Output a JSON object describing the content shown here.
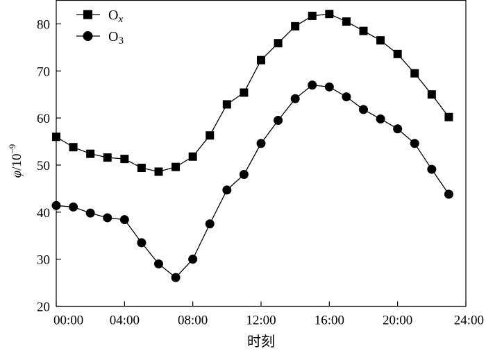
{
  "chart_data": {
    "type": "line",
    "xlabel": "时刻",
    "ylabel": {
      "symbol": "φ",
      "unit_base": "/10",
      "unit_exp": "−9"
    },
    "x": [
      0,
      1,
      2,
      3,
      4,
      5,
      6,
      7,
      8,
      9,
      10,
      11,
      12,
      13,
      14,
      15,
      16,
      17,
      18,
      19,
      20,
      21,
      22,
      23
    ],
    "xlim": [
      0,
      24
    ],
    "ylim": [
      20,
      85
    ],
    "xticks": [
      0,
      4,
      8,
      12,
      16,
      20,
      24
    ],
    "xtick_labels": [
      "00:00",
      "04:00",
      "08:00",
      "12:00",
      "16:00",
      "20:00",
      "24:00"
    ],
    "yticks": [
      20,
      30,
      40,
      50,
      60,
      70,
      80
    ],
    "ytick_labels": [
      "20",
      "30",
      "40",
      "50",
      "60",
      "70",
      "80"
    ],
    "legend_position": "top-left",
    "grid": false,
    "series": [
      {
        "name": "Ox",
        "name_base": "O",
        "name_sub": "x",
        "marker": "square",
        "color": "#000000",
        "values": [
          56.0,
          53.8,
          52.4,
          51.6,
          51.3,
          49.4,
          48.6,
          49.6,
          51.8,
          56.3,
          62.9,
          65.4,
          72.3,
          75.9,
          79.5,
          81.7,
          82.1,
          80.5,
          78.5,
          76.5,
          73.6,
          69.5,
          65.0,
          60.2
        ]
      },
      {
        "name": "O3",
        "name_base": "O",
        "name_sub": "3",
        "marker": "circle",
        "color": "#000000",
        "values": [
          41.4,
          41.1,
          39.8,
          38.8,
          38.4,
          33.5,
          29.0,
          26.1,
          30.0,
          37.5,
          44.7,
          48.0,
          54.6,
          59.5,
          64.1,
          67.0,
          66.6,
          64.5,
          61.8,
          59.8,
          57.7,
          54.6,
          49.1,
          43.8
        ]
      }
    ]
  }
}
